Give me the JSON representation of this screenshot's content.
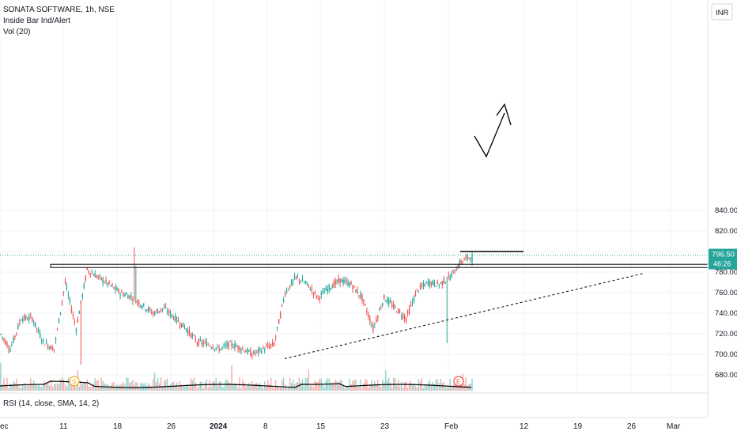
{
  "legend": {
    "symbol": "SONATA SOFTWARE, 1h, NSE",
    "indicator1": "Inside Bar Ind/Alert",
    "indicator2": "Vol (20)"
  },
  "rsi_label": "RSI (14, close, SMA, 14, 2)",
  "currency": "INR",
  "price_badge": {
    "price": "796.50",
    "countdown": "46:26",
    "color": "#26a69a"
  },
  "colors": {
    "up": "#26a69a",
    "down": "#ef5350",
    "grid": "#f0f3fa",
    "line": "#000000"
  },
  "markers": [
    {
      "label": "S",
      "color": "#f5a623",
      "date_index": 6
    },
    {
      "label": "E",
      "color": "#ef5350",
      "date_index": 49
    }
  ],
  "chart_data": {
    "type": "candlestick",
    "title": "SONATA SOFTWARE, 1h, NSE",
    "ylim": [
      670,
      850
    ],
    "y_ticks": [
      680,
      700,
      720,
      740,
      760,
      780,
      800,
      820,
      840
    ],
    "x_tick_labels": [
      "ec",
      "11",
      "18",
      "26",
      "2024",
      "8",
      "15",
      "23",
      "Feb",
      "12",
      "19",
      "26",
      "Mar"
    ],
    "series": [
      {
        "name": "price",
        "x": [
          "Dec 5",
          "Dec 6",
          "Dec 7",
          "Dec 8",
          "Dec 11",
          "Dec 12",
          "Dec 13",
          "Dec 14",
          "Dec 15",
          "Dec 18",
          "Dec 19",
          "Dec 20",
          "Dec 21",
          "Dec 22",
          "Dec 26",
          "Dec 27",
          "Dec 28",
          "Dec 29",
          "Jan 1",
          "Jan 2",
          "Jan 3",
          "Jan 4",
          "Jan 5",
          "Jan 8",
          "Jan 9",
          "Jan 10",
          "Jan 11",
          "Jan 12",
          "Jan 15",
          "Jan 16",
          "Jan 17",
          "Jan 18",
          "Jan 19",
          "Jan 22",
          "Jan 23",
          "Jan 24",
          "Jan 25",
          "Jan 29",
          "Jan 30",
          "Jan 31",
          "Feb 1",
          "Feb 2",
          "Feb 5"
        ],
        "close": [
          705,
          735,
          735,
          712,
          705,
          770,
          725,
          782,
          775,
          768,
          760,
          756,
          748,
          740,
          745,
          735,
          725,
          712,
          710,
          705,
          710,
          706,
          700,
          705,
          710,
          760,
          775,
          768,
          755,
          765,
          772,
          768,
          755,
          725,
          755,
          745,
          735,
          762,
          770,
          768,
          775,
          790,
          796.5
        ]
      }
    ],
    "annotations": {
      "resistance_level": 786,
      "breakout_line": 800,
      "trendline_start": {
        "date": "Jan 11",
        "price": 695
      },
      "trendline_end": {
        "date": "Feb 28",
        "price": 779
      }
    }
  }
}
